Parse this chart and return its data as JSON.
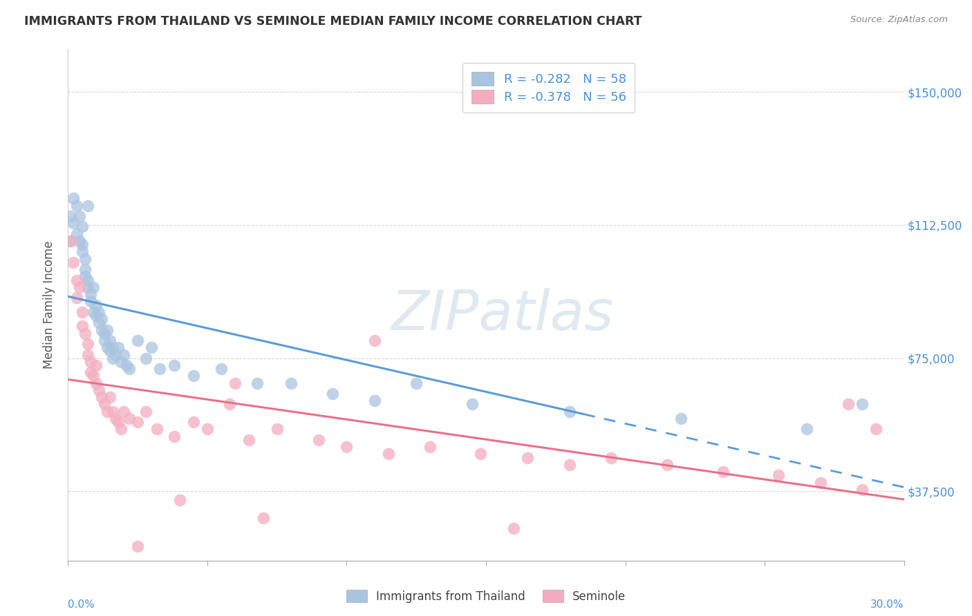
{
  "title": "IMMIGRANTS FROM THAILAND VS SEMINOLE MEDIAN FAMILY INCOME CORRELATION CHART",
  "source": "Source: ZipAtlas.com",
  "ylabel": "Median Family Income",
  "xlim": [
    0.0,
    0.3
  ],
  "ylim": [
    18000,
    162000
  ],
  "ytick_positions": [
    37500,
    75000,
    112500,
    150000
  ],
  "ytick_labels": [
    "$37,500",
    "$75,000",
    "$112,500",
    "$150,000"
  ],
  "xtick_positions": [
    0.0,
    0.05,
    0.1,
    0.15,
    0.2,
    0.25,
    0.3
  ],
  "legend_line1": "R = -0.282   N = 58",
  "legend_line2": "R = -0.378   N = 56",
  "legend_r1": "-0.282",
  "legend_n1": "58",
  "legend_r2": "-0.378",
  "legend_n2": "56",
  "color_blue_scatter": "#aac4e0",
  "color_pink_scatter": "#f4adc0",
  "color_blue_text": "#4a90d9",
  "color_pink_text": "#e0507a",
  "color_line_blue": "#5b9bd5",
  "color_line_pink": "#e8708a",
  "color_grid": "#cccccc",
  "watermark_text": "ZIPatlas",
  "watermark_color": "#e0e8f0",
  "blue_line_solid_end": 0.185,
  "blue_scatter_x": [
    0.001,
    0.001,
    0.002,
    0.002,
    0.003,
    0.003,
    0.004,
    0.004,
    0.005,
    0.005,
    0.005,
    0.006,
    0.006,
    0.006,
    0.007,
    0.007,
    0.007,
    0.008,
    0.008,
    0.009,
    0.009,
    0.01,
    0.01,
    0.011,
    0.011,
    0.012,
    0.012,
    0.013,
    0.013,
    0.014,
    0.014,
    0.015,
    0.015,
    0.016,
    0.016,
    0.017,
    0.018,
    0.019,
    0.02,
    0.021,
    0.022,
    0.025,
    0.028,
    0.03,
    0.033,
    0.038,
    0.045,
    0.055,
    0.068,
    0.08,
    0.095,
    0.11,
    0.125,
    0.145,
    0.18,
    0.22,
    0.265,
    0.285
  ],
  "blue_scatter_y": [
    115000,
    108000,
    120000,
    113000,
    110000,
    118000,
    108000,
    115000,
    107000,
    105000,
    112000,
    103000,
    100000,
    98000,
    97000,
    95000,
    118000,
    93000,
    91000,
    95000,
    88000,
    90000,
    87000,
    88000,
    85000,
    86000,
    83000,
    82000,
    80000,
    83000,
    78000,
    80000,
    77000,
    78000,
    75000,
    76000,
    78000,
    74000,
    76000,
    73000,
    72000,
    80000,
    75000,
    78000,
    72000,
    73000,
    70000,
    72000,
    68000,
    68000,
    65000,
    63000,
    68000,
    62000,
    60000,
    58000,
    55000,
    62000
  ],
  "pink_scatter_x": [
    0.001,
    0.002,
    0.003,
    0.003,
    0.004,
    0.005,
    0.005,
    0.006,
    0.007,
    0.007,
    0.008,
    0.008,
    0.009,
    0.01,
    0.01,
    0.011,
    0.012,
    0.013,
    0.014,
    0.015,
    0.016,
    0.017,
    0.018,
    0.019,
    0.02,
    0.022,
    0.025,
    0.028,
    0.032,
    0.038,
    0.045,
    0.05,
    0.058,
    0.065,
    0.075,
    0.09,
    0.1,
    0.115,
    0.13,
    0.148,
    0.165,
    0.18,
    0.195,
    0.215,
    0.235,
    0.255,
    0.27,
    0.285,
    0.11,
    0.06,
    0.025,
    0.04,
    0.07,
    0.16,
    0.28,
    0.29
  ],
  "pink_scatter_y": [
    108000,
    102000,
    97000,
    92000,
    95000,
    88000,
    84000,
    82000,
    79000,
    76000,
    74000,
    71000,
    70000,
    73000,
    68000,
    66000,
    64000,
    62000,
    60000,
    64000,
    60000,
    58000,
    57000,
    55000,
    60000,
    58000,
    57000,
    60000,
    55000,
    53000,
    57000,
    55000,
    62000,
    52000,
    55000,
    52000,
    50000,
    48000,
    50000,
    48000,
    47000,
    45000,
    47000,
    45000,
    43000,
    42000,
    40000,
    38000,
    80000,
    68000,
    22000,
    35000,
    30000,
    27000,
    62000,
    55000
  ]
}
